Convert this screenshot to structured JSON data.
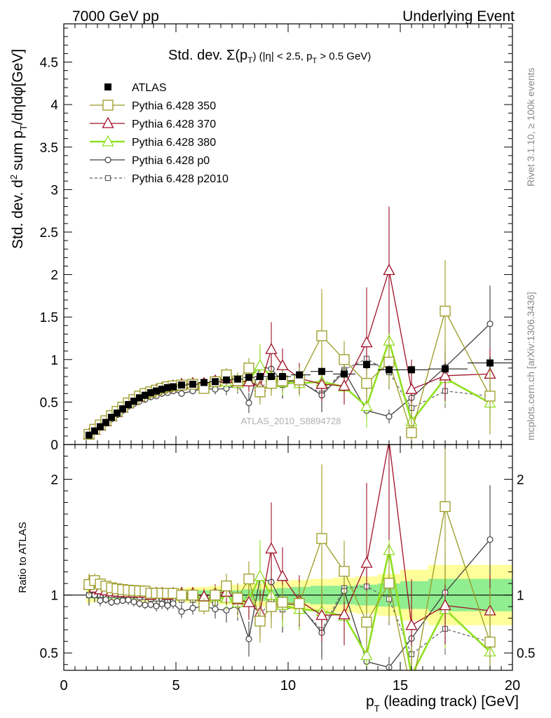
{
  "header": {
    "left": "7000 GeV pp",
    "right": "Underlying Event"
  },
  "side_labels": {
    "rivet": "Rivet 3.1.10, ≥ 100k events",
    "mcplots": "mcplots.cern.ch [arXiv:1306.3436]"
  },
  "watermark": "ATLAS_2010_S8894728",
  "panel_title": {
    "main": "Std. dev. Σ(p",
    "sub_T": "T",
    "rest": ") (|η| < 2.5, p",
    "rest2": " > 0.5 GeV)"
  },
  "legend": [
    {
      "key": "atlas",
      "label": "ATLAS"
    },
    {
      "key": "p350",
      "label": "Pythia 6.428 350"
    },
    {
      "key": "p370",
      "label": "Pythia 6.428 370"
    },
    {
      "key": "p380",
      "label": "Pythia 6.428 380"
    },
    {
      "key": "p0",
      "label": "Pythia 6.428 p0"
    },
    {
      "key": "p2010",
      "label": "Pythia 6.428 p2010"
    }
  ],
  "colors": {
    "atlas": "#000000",
    "p350": "#9a9a24",
    "p370": "#a01028",
    "p380": "#90e020",
    "p0": "#404040",
    "p2010": "#606060",
    "band_inner": "#90ee90",
    "band_outer": "#ffff99"
  },
  "chart_data": {
    "type": "scatter",
    "x_label": "p",
    "x_label_sub": "T",
    "x_label_rest": " (leading track) [GeV]",
    "y_label_main": "Std. dev. d",
    "y_label_sup": "2",
    "y_label_mid": " sum p",
    "y_label_sub": "T",
    "y_label_rest": "/dηdφ[GeV]",
    "y_label_ratio": "Ratio to ATLAS",
    "xlim": [
      0,
      20
    ],
    "ylim_main": [
      0,
      4.95
    ],
    "ylim_ratio": [
      0.35,
      2.3
    ],
    "x_ticks": [
      0,
      5,
      10,
      15,
      20
    ],
    "y_ticks_main": [
      0,
      0.5,
      1,
      1.5,
      2,
      2.5,
      3,
      3.5,
      4,
      4.5
    ],
    "y_tick_labels_main": [
      "0",
      "0.5",
      "1",
      "1.5",
      "2",
      "2.5",
      "3",
      "3.5",
      "4",
      "4.5"
    ],
    "y_ticks_ratio": [
      0.5,
      1,
      2
    ],
    "y_tick_labels_ratio": [
      "0.5",
      "1",
      "2"
    ],
    "x": [
      1.125,
      1.375,
      1.625,
      1.875,
      2.125,
      2.375,
      2.625,
      2.875,
      3.125,
      3.375,
      3.625,
      3.875,
      4.125,
      4.375,
      4.625,
      4.875,
      5.25,
      5.75,
      6.25,
      6.75,
      7.25,
      7.75,
      8.25,
      8.75,
      9.25,
      9.75,
      10.5,
      11.5,
      12.5,
      13.5,
      14.5,
      15.5,
      17.0,
      19.0
    ],
    "series": [
      {
        "key": "atlas",
        "name": "ATLAS",
        "values": [
          0.11,
          0.16,
          0.21,
          0.26,
          0.32,
          0.37,
          0.42,
          0.47,
          0.51,
          0.55,
          0.58,
          0.61,
          0.63,
          0.65,
          0.67,
          0.68,
          0.7,
          0.71,
          0.73,
          0.74,
          0.76,
          0.77,
          0.79,
          0.8,
          0.8,
          0.8,
          0.82,
          0.86,
          0.83,
          0.94,
          0.88,
          0.88,
          0.89,
          0.96
        ],
        "errors": [
          0.01,
          0.01,
          0.01,
          0.01,
          0.01,
          0.01,
          0.01,
          0.01,
          0.01,
          0.01,
          0.01,
          0.01,
          0.01,
          0.01,
          0.01,
          0.01,
          0.02,
          0.02,
          0.02,
          0.02,
          0.02,
          0.02,
          0.03,
          0.03,
          0.03,
          0.03,
          0.03,
          0.04,
          0.04,
          0.05,
          0.05,
          0.05,
          0.06,
          0.07
        ]
      },
      {
        "key": "p350",
        "name": "Pythia 6.428 350",
        "values": [
          0.12,
          0.18,
          0.23,
          0.28,
          0.34,
          0.39,
          0.44,
          0.49,
          0.53,
          0.57,
          0.6,
          0.62,
          0.64,
          0.66,
          0.68,
          0.69,
          0.7,
          0.71,
          0.66,
          0.74,
          0.82,
          0.75,
          0.9,
          0.62,
          0.72,
          0.75,
          0.76,
          1.28,
          1.0,
          0.72,
          0.97,
          0.14,
          1.57,
          0.57
        ],
        "errors": [
          0.01,
          0.01,
          0.01,
          0.01,
          0.01,
          0.01,
          0.01,
          0.02,
          0.02,
          0.02,
          0.02,
          0.02,
          0.03,
          0.03,
          0.03,
          0.03,
          0.04,
          0.04,
          0.05,
          0.06,
          0.08,
          0.1,
          0.12,
          0.15,
          0.15,
          0.12,
          0.15,
          0.55,
          0.22,
          0.25,
          0.3,
          0.35,
          0.6,
          0.45
        ]
      },
      {
        "key": "p370",
        "name": "Pythia 6.428 370",
        "values": [
          0.12,
          0.17,
          0.22,
          0.27,
          0.33,
          0.38,
          0.43,
          0.48,
          0.52,
          0.56,
          0.59,
          0.61,
          0.64,
          0.66,
          0.67,
          0.69,
          0.71,
          0.72,
          0.72,
          0.75,
          0.78,
          0.74,
          0.74,
          0.68,
          1.12,
          0.93,
          0.78,
          0.71,
          0.69,
          1.2,
          2.05,
          0.65,
          0.81,
          0.83
        ],
        "errors": [
          0.01,
          0.01,
          0.01,
          0.01,
          0.01,
          0.01,
          0.01,
          0.02,
          0.02,
          0.02,
          0.02,
          0.02,
          0.03,
          0.03,
          0.03,
          0.03,
          0.04,
          0.04,
          0.05,
          0.06,
          0.08,
          0.1,
          0.12,
          0.15,
          0.32,
          0.2,
          0.18,
          0.2,
          0.22,
          0.65,
          0.75,
          0.35,
          0.3,
          0.3
        ]
      },
      {
        "key": "p380",
        "name": "Pythia 6.428 380",
        "values": [
          0.12,
          0.17,
          0.22,
          0.27,
          0.33,
          0.38,
          0.43,
          0.48,
          0.52,
          0.56,
          0.59,
          0.61,
          0.64,
          0.66,
          0.67,
          0.69,
          0.7,
          0.71,
          0.7,
          0.73,
          0.74,
          0.72,
          0.76,
          0.93,
          0.8,
          0.73,
          0.72,
          0.74,
          0.68,
          0.45,
          1.22,
          0.27,
          0.78,
          0.49
        ],
        "errors": [
          0.01,
          0.01,
          0.01,
          0.01,
          0.01,
          0.01,
          0.01,
          0.02,
          0.02,
          0.02,
          0.02,
          0.02,
          0.03,
          0.03,
          0.03,
          0.03,
          0.04,
          0.04,
          0.05,
          0.06,
          0.08,
          0.1,
          0.12,
          0.25,
          0.2,
          0.15,
          0.15,
          0.2,
          0.2,
          0.25,
          0.38,
          0.28,
          0.3,
          0.25
        ]
      },
      {
        "key": "p0",
        "name": "Pythia 6.428 p0",
        "values": [
          0.11,
          0.16,
          0.2,
          0.25,
          0.3,
          0.35,
          0.4,
          0.45,
          0.48,
          0.51,
          0.53,
          0.56,
          0.57,
          0.6,
          0.61,
          0.63,
          0.6,
          0.63,
          0.66,
          0.65,
          0.66,
          0.7,
          0.49,
          0.92,
          0.89,
          0.74,
          0.75,
          0.58,
          0.86,
          0.4,
          0.33,
          0.55,
          0.91,
          1.42
        ],
        "errors": [
          0.01,
          0.01,
          0.01,
          0.01,
          0.01,
          0.01,
          0.01,
          0.02,
          0.02,
          0.02,
          0.02,
          0.02,
          0.03,
          0.03,
          0.03,
          0.03,
          0.04,
          0.04,
          0.05,
          0.06,
          0.08,
          0.1,
          0.12,
          0.2,
          0.25,
          0.2,
          0.18,
          0.2,
          0.22,
          0.1,
          0.08,
          0.2,
          0.3,
          0.45
        ]
      },
      {
        "key": "p2010",
        "name": "Pythia 6.428 p2010",
        "values": [
          0.11,
          0.16,
          0.21,
          0.26,
          0.32,
          0.37,
          0.42,
          0.47,
          0.51,
          0.54,
          0.57,
          0.59,
          0.61,
          0.63,
          0.64,
          0.65,
          0.67,
          0.68,
          0.69,
          0.69,
          0.73,
          0.73,
          0.76,
          0.66,
          0.77,
          0.7,
          0.74,
          0.6,
          0.88,
          1.01,
          0.85,
          0.43,
          0.63,
          0.57
        ],
        "errors": [
          0.01,
          0.01,
          0.01,
          0.01,
          0.01,
          0.01,
          0.01,
          0.02,
          0.02,
          0.02,
          0.02,
          0.02,
          0.03,
          0.03,
          0.03,
          0.03,
          0.04,
          0.04,
          0.05,
          0.06,
          0.08,
          0.1,
          0.12,
          0.15,
          0.15,
          0.15,
          0.15,
          0.2,
          0.2,
          0.2,
          0.2,
          0.15,
          0.2,
          0.25
        ]
      }
    ],
    "ratio_band_inner": [
      0.03,
      0.03,
      0.03,
      0.03,
      0.03,
      0.03,
      0.03,
      0.03,
      0.03,
      0.03,
      0.03,
      0.03,
      0.03,
      0.03,
      0.03,
      0.03,
      0.03,
      0.03,
      0.04,
      0.04,
      0.04,
      0.04,
      0.05,
      0.05,
      0.05,
      0.06,
      0.07,
      0.08,
      0.08,
      0.09,
      0.1,
      0.12,
      0.14,
      0.14
    ],
    "ratio_band_outer": [
      0.07,
      0.06,
      0.06,
      0.06,
      0.06,
      0.06,
      0.06,
      0.06,
      0.06,
      0.06,
      0.06,
      0.06,
      0.06,
      0.06,
      0.06,
      0.06,
      0.06,
      0.07,
      0.07,
      0.08,
      0.08,
      0.09,
      0.1,
      0.1,
      0.11,
      0.12,
      0.13,
      0.14,
      0.15,
      0.16,
      0.18,
      0.22,
      0.26,
      0.26
    ],
    "legend_position": "upper-left"
  }
}
